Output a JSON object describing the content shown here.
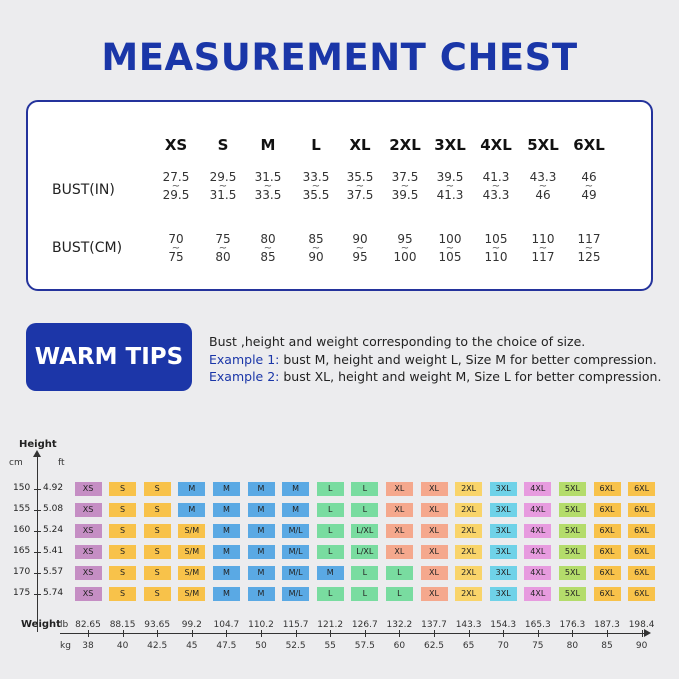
{
  "title": "MEASUREMENT CHEST",
  "size_table": {
    "sizes": [
      "XS",
      "S",
      "M",
      "L",
      "XL",
      "2XL",
      "3XL",
      "4XL",
      "5XL",
      "6XL"
    ],
    "rows": [
      {
        "label": "BUST(IN)",
        "values": [
          [
            "27.5",
            "29.5"
          ],
          [
            "29.5",
            "31.5"
          ],
          [
            "31.5",
            "33.5"
          ],
          [
            "33.5",
            "35.5"
          ],
          [
            "35.5",
            "37.5"
          ],
          [
            "37.5",
            "39.5"
          ],
          [
            "39.5",
            "41.3"
          ],
          [
            "41.3",
            "43.3"
          ],
          [
            "43.3",
            "46"
          ],
          [
            "46",
            "49"
          ]
        ]
      },
      {
        "label": "BUST(CM)",
        "values": [
          [
            "70",
            "75"
          ],
          [
            "75",
            "80"
          ],
          [
            "80",
            "85"
          ],
          [
            "85",
            "90"
          ],
          [
            "90",
            "95"
          ],
          [
            "95",
            "100"
          ],
          [
            "100",
            "105"
          ],
          [
            "105",
            "110"
          ],
          [
            "110",
            "117"
          ],
          [
            "117",
            "125"
          ]
        ]
      }
    ],
    "range_mark": "~"
  },
  "tips": {
    "badge": "WARM TIPS",
    "line1": "Bust ,height and weight corresponding to the choice of size.",
    "ex1_label": "Example 1:",
    "ex1_text": " bust M, height and weight L, Size M for better compression.",
    "ex2_label": "Example 2:",
    "ex2_text": " bust XL, height and weight M, Size L for better compression."
  },
  "grid": {
    "height_title": "Height",
    "cm_unit": "cm",
    "ft_unit": "ft",
    "weight_title": "Weight",
    "lb_unit": "lb",
    "kg_unit": "kg",
    "heights": [
      {
        "cm": "150",
        "ft": "4.92"
      },
      {
        "cm": "155",
        "ft": "5.08"
      },
      {
        "cm": "160",
        "ft": "5.24"
      },
      {
        "cm": "165",
        "ft": "5.41"
      },
      {
        "cm": "170",
        "ft": "5.57"
      },
      {
        "cm": "175",
        "ft": "5.74"
      }
    ],
    "lb": [
      "82.65",
      "88.15",
      "93.65",
      "99.2",
      "104.7",
      "110.2",
      "115.7",
      "121.2",
      "126.7",
      "132.2",
      "137.7",
      "143.3",
      "154.3",
      "165.3",
      "176.3",
      "187.3",
      "198.4"
    ],
    "kg": [
      "38",
      "40",
      "42.5",
      "45",
      "47.5",
      "50",
      "52.5",
      "55",
      "57.5",
      "60",
      "62.5",
      "65",
      "70",
      "75",
      "80",
      "85",
      "90"
    ],
    "colors": {
      "XS": "#c58ec4",
      "S": "#f8c24a",
      "S/M": "#f8c24a",
      "M": "#5aa9e4",
      "M/L": "#5aa9e4",
      "L": "#79dca0",
      "L/XL": "#79dca0",
      "XL": "#f5a88d",
      "2XL": "#f9d46a",
      "3XL": "#6fd2e8",
      "4XL": "#e79bdf",
      "5XL": "#b4dc6b",
      "6XL": "#f8c24a"
    },
    "rows": [
      [
        "XS",
        "S",
        "S",
        "M",
        "M",
        "M",
        "M",
        "L",
        "L",
        "XL",
        "XL",
        "2XL",
        "3XL",
        "4XL",
        "5XL",
        "6XL",
        "6XL"
      ],
      [
        "XS",
        "S",
        "S",
        "M",
        "M",
        "M",
        "M",
        "L",
        "L",
        "XL",
        "XL",
        "2XL",
        "3XL",
        "4XL",
        "5XL",
        "6XL",
        "6XL"
      ],
      [
        "XS",
        "S",
        "S",
        "S/M",
        "M",
        "M",
        "M/L",
        "L",
        "L/XL",
        "XL",
        "XL",
        "2XL",
        "3XL",
        "4XL",
        "5XL",
        "6XL",
        "6XL"
      ],
      [
        "XS",
        "S",
        "S",
        "S/M",
        "M",
        "M",
        "M/L",
        "L",
        "L/XL",
        "XL",
        "XL",
        "2XL",
        "3XL",
        "4XL",
        "5XL",
        "6XL",
        "6XL"
      ],
      [
        "XS",
        "S",
        "S",
        "S/M",
        "M",
        "M",
        "M/L",
        "M",
        "L",
        "L",
        "XL",
        "2XL",
        "3XL",
        "4XL",
        "5XL",
        "6XL",
        "6XL"
      ],
      [
        "XS",
        "S",
        "S",
        "S/M",
        "M",
        "M",
        "M/L",
        "L",
        "L",
        "L",
        "XL",
        "2XL",
        "3XL",
        "4XL",
        "5XL",
        "6XL",
        "6XL"
      ]
    ]
  }
}
